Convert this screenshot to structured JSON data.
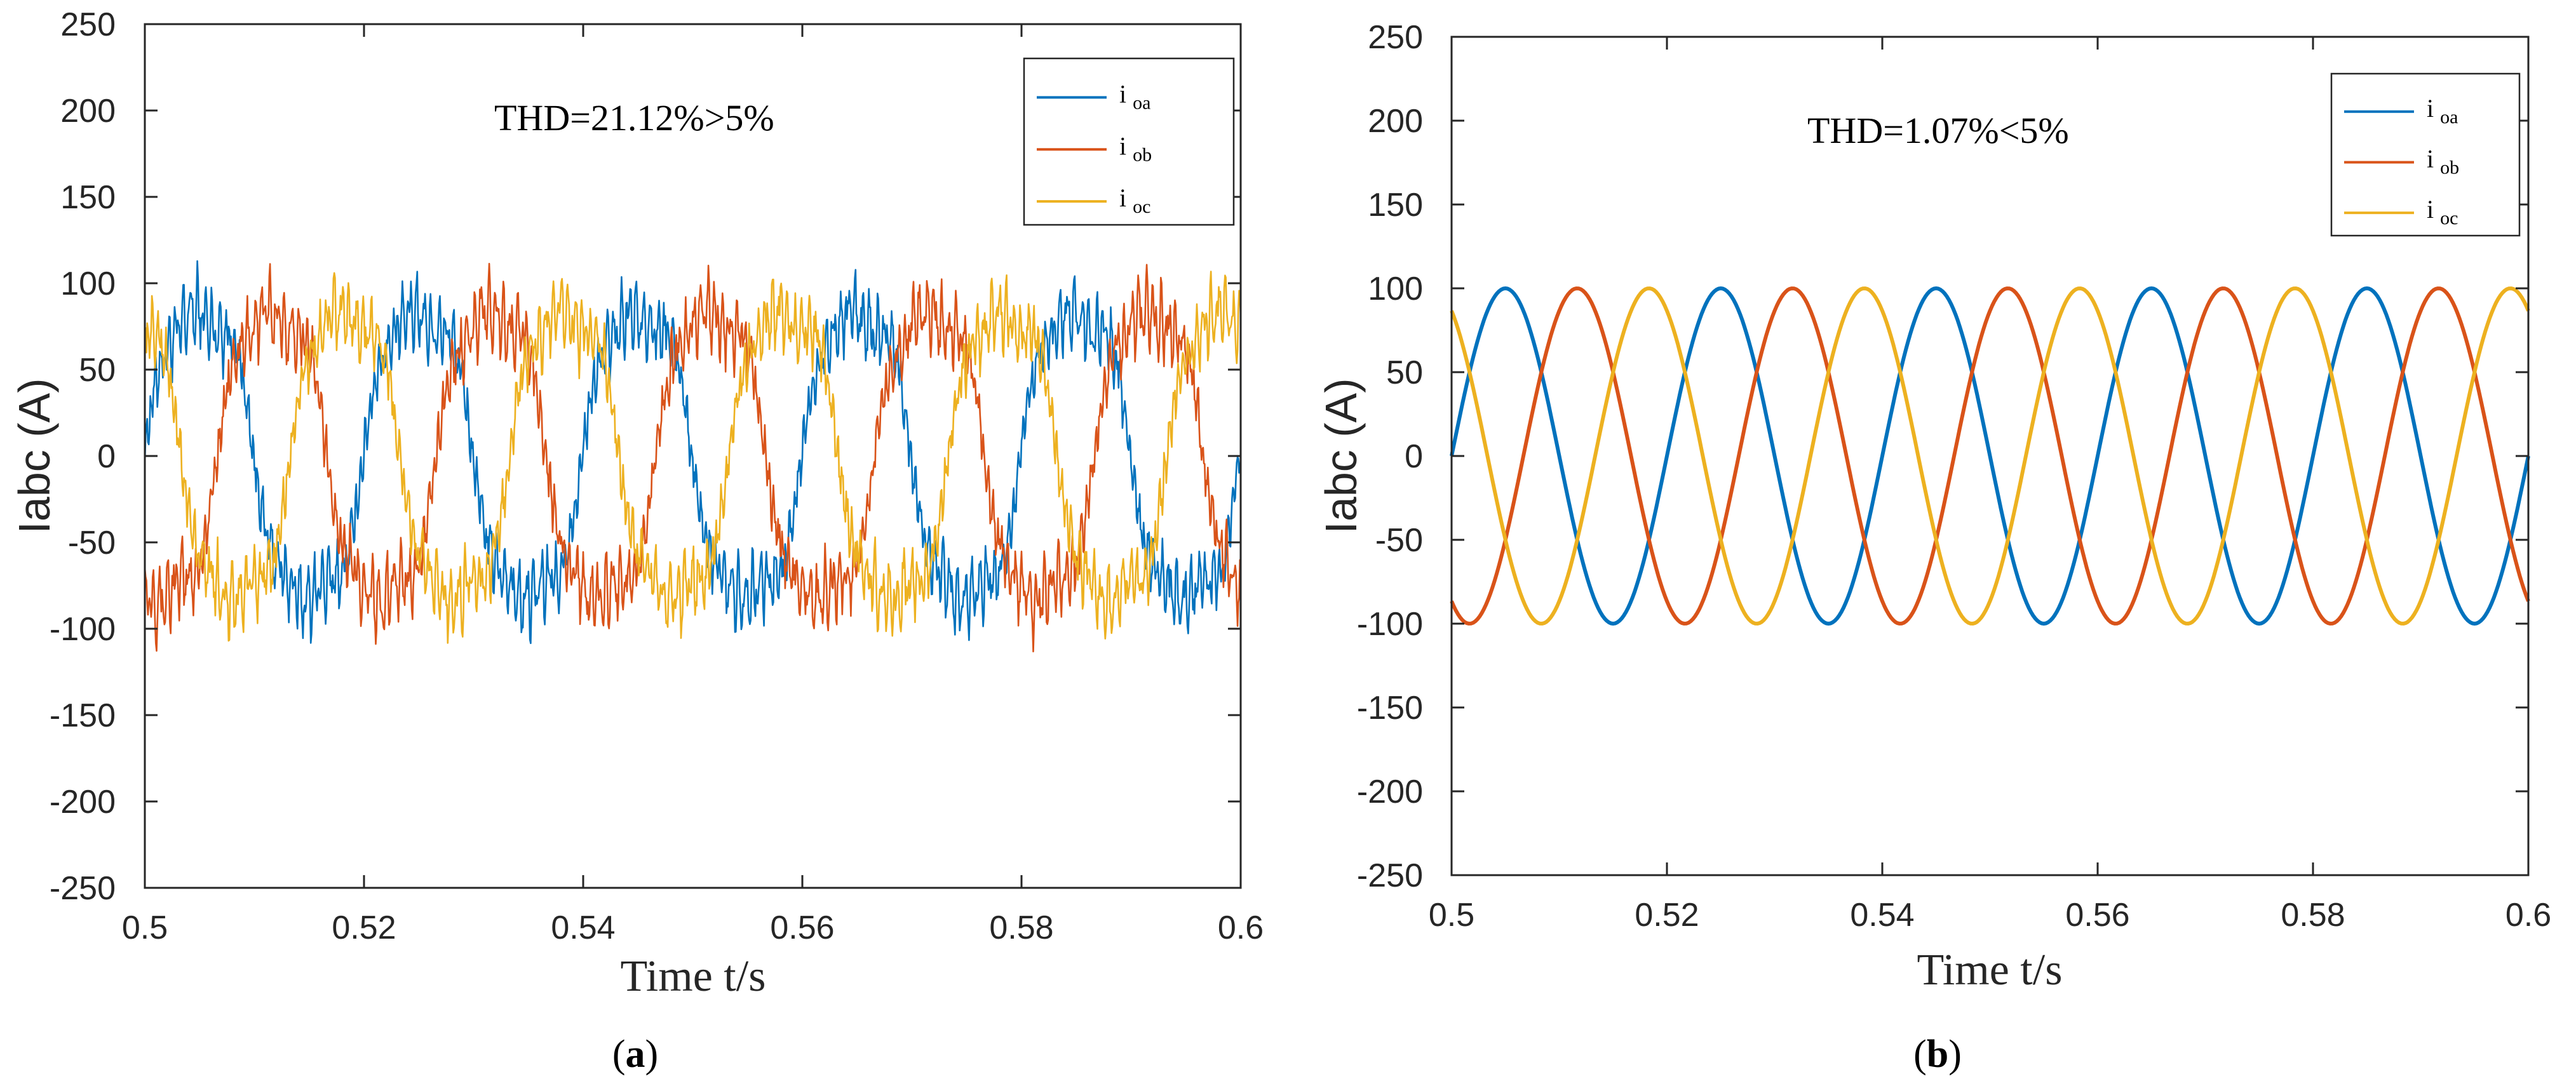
{
  "chart_data": [
    {
      "type": "line",
      "panel_label": "a",
      "ylabel": "Iabc (A)",
      "xlabel": "Time t/s",
      "xlim": [
        0.5,
        0.6
      ],
      "ylim": [
        -250,
        250
      ],
      "x_ticks": [
        "0.5",
        "0.52",
        "0.54",
        "0.56",
        "0.58",
        "0.6"
      ],
      "y_ticks": [
        "250",
        "200",
        "150",
        "100",
        "50",
        "0",
        "-50",
        "-100",
        "-150",
        "-200",
        "-250"
      ],
      "annotation": "THD=21.12%>5%",
      "legend_position": "top-right",
      "frequency_hz": 50,
      "amplitude": 100,
      "distortion": "high",
      "series": [
        {
          "name": "i",
          "sub": "oa",
          "color": "#0072BD",
          "phase_deg": 0
        },
        {
          "name": "i",
          "sub": "ob",
          "color": "#D95319",
          "phase_deg": -120
        },
        {
          "name": "i",
          "sub": "oc",
          "color": "#EDB120",
          "phase_deg": 120
        }
      ]
    },
    {
      "type": "line",
      "panel_label": "b",
      "ylabel": "Iabc (A)",
      "xlabel": "Time t/s",
      "xlim": [
        0.5,
        0.6
      ],
      "ylim": [
        -250,
        250
      ],
      "x_ticks": [
        "0.5",
        "0.52",
        "0.54",
        "0.56",
        "0.58",
        "0.6"
      ],
      "y_ticks": [
        "250",
        "200",
        "150",
        "100",
        "50",
        "0",
        "-50",
        "-100",
        "-150",
        "-200",
        "-250"
      ],
      "annotation": "THD=1.07%<5%",
      "legend_position": "top-right",
      "frequency_hz": 50,
      "amplitude": 100,
      "distortion": "low",
      "series": [
        {
          "name": "i",
          "sub": "oa",
          "color": "#0072BD",
          "phase_deg": 0
        },
        {
          "name": "i",
          "sub": "ob",
          "color": "#D95319",
          "phase_deg": -120
        },
        {
          "name": "i",
          "sub": "oc",
          "color": "#EDB120",
          "phase_deg": 120
        }
      ]
    }
  ]
}
